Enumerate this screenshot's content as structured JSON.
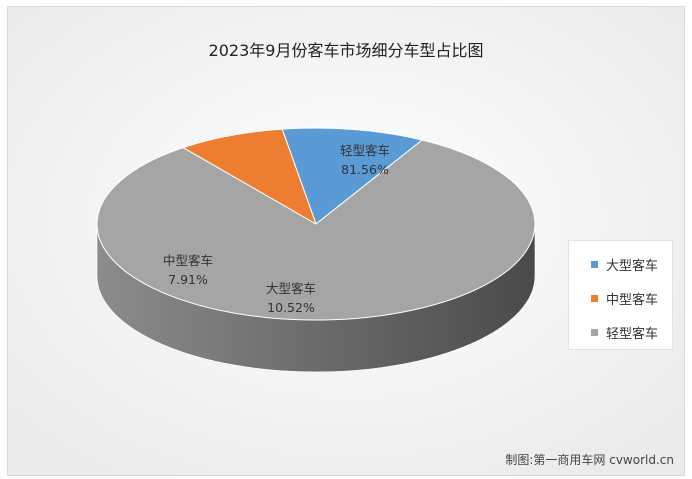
{
  "chart_data": {
    "type": "pie",
    "title": "2023年9月份客车市场细分车型占比图",
    "slices": [
      {
        "name": "大型客车",
        "value": 10.52,
        "label": "10.52%",
        "color": "#5b9bd5"
      },
      {
        "name": "中型客车",
        "value": 7.91,
        "label": "7.91%",
        "color": "#ed7d31"
      },
      {
        "name": "轻型客车",
        "value": 81.56,
        "label": "81.56%",
        "color": "#a5a5a5"
      }
    ],
    "legend_position": "right"
  },
  "credit": "制图:第一商用车网 cvworld.cn"
}
